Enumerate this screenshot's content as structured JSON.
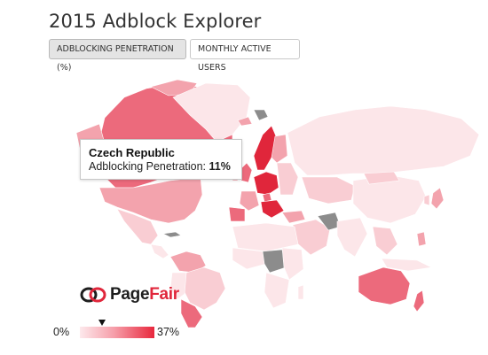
{
  "header": {
    "title": "2015 Adblock Explorer"
  },
  "tabs": [
    {
      "label": "ADBLOCKING PENETRATION (%)",
      "active": true
    },
    {
      "label": "MONTHLY ACTIVE USERS",
      "active": false
    }
  ],
  "tooltip": {
    "country": "Czech Republic",
    "metric_label": "Adblocking Penetration:",
    "value": "11%"
  },
  "logo": {
    "part1": "Page",
    "part2": "Fair",
    "icon": "pagefair-link-icon"
  },
  "legend": {
    "min_label": "0%",
    "max_label": "37%",
    "marker_value_percent": 11,
    "colors": {
      "low": "#fde9ec",
      "high": "#e8283d"
    }
  },
  "map": {
    "colors": {
      "no_data": "#8c8c8c",
      "very_light": "#fce6e9",
      "light": "#f9cdd3",
      "medium": "#f3a3ad",
      "strong": "#ec6a7c",
      "darkest": "#e0263b"
    }
  }
}
